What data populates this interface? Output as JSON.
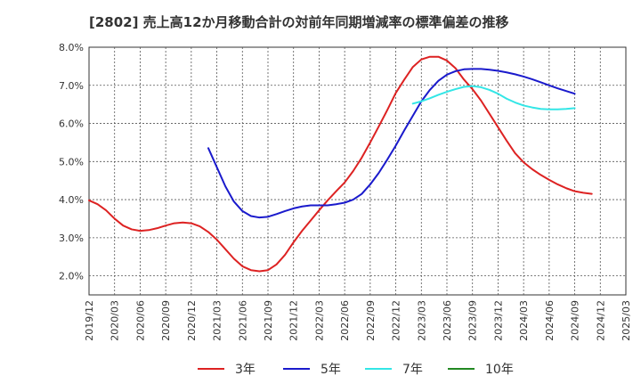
{
  "chart_data": {
    "type": "line",
    "title": "[2802]  売上高12か月移動合計の対前年同期増減率の標準偏差の推移",
    "xlabel": "",
    "ylabel": "",
    "ylim": [
      1.5,
      8.0
    ],
    "yticks": [
      "2.0%",
      "3.0%",
      "4.0%",
      "5.0%",
      "6.0%",
      "7.0%",
      "8.0%"
    ],
    "yticks_values": [
      2.0,
      3.0,
      4.0,
      5.0,
      6.0,
      7.0,
      8.0
    ],
    "xticks": [
      "2019/12",
      "2020/03",
      "2020/06",
      "2020/09",
      "2020/12",
      "2021/03",
      "2021/06",
      "2021/09",
      "2021/12",
      "2022/03",
      "2022/06",
      "2022/09",
      "2022/12",
      "2023/03",
      "2023/06",
      "2023/09",
      "2023/12",
      "2024/03",
      "2024/06",
      "2024/09",
      "2024/12",
      "2025/03"
    ],
    "grid": true,
    "legend_position": "bottom",
    "x_start": "2019/12",
    "series": [
      {
        "name": "3年",
        "color": "#dd2222",
        "start": "2019/12",
        "values": [
          3.98,
          3.88,
          3.72,
          3.5,
          3.32,
          3.22,
          3.18,
          3.2,
          3.25,
          3.32,
          3.38,
          3.4,
          3.38,
          3.3,
          3.15,
          2.95,
          2.7,
          2.45,
          2.25,
          2.15,
          2.12,
          2.15,
          2.3,
          2.55,
          2.88,
          3.18,
          3.45,
          3.72,
          3.98,
          4.22,
          4.45,
          4.75,
          5.1,
          5.5,
          5.92,
          6.35,
          6.8,
          7.15,
          7.48,
          7.68,
          7.75,
          7.75,
          7.65,
          7.45,
          7.15,
          6.9,
          6.6,
          6.25,
          5.9,
          5.55,
          5.22,
          4.98,
          4.8,
          4.65,
          4.52,
          4.4,
          4.3,
          4.22,
          4.18,
          4.15
        ]
      },
      {
        "name": "5年",
        "color": "#1a1acc",
        "start": "2021/02",
        "values": [
          5.35,
          4.85,
          4.35,
          3.95,
          3.7,
          3.57,
          3.53,
          3.55,
          3.62,
          3.7,
          3.77,
          3.82,
          3.85,
          3.85,
          3.85,
          3.88,
          3.92,
          4.0,
          4.15,
          4.4,
          4.7,
          5.05,
          5.42,
          5.82,
          6.2,
          6.58,
          6.88,
          7.12,
          7.28,
          7.37,
          7.42,
          7.43,
          7.43,
          7.41,
          7.38,
          7.34,
          7.29,
          7.23,
          7.16,
          7.08,
          7.0,
          6.92,
          6.85,
          6.78
        ]
      },
      {
        "name": "7年",
        "color": "#33e6e6",
        "start": "2023/02",
        "values": [
          6.52,
          6.58,
          6.66,
          6.75,
          6.83,
          6.9,
          6.96,
          6.98,
          6.95,
          6.88,
          6.78,
          6.65,
          6.55,
          6.47,
          6.42,
          6.38,
          6.37,
          6.37,
          6.38,
          6.4
        ]
      },
      {
        "name": "10年",
        "color": "#228822",
        "start": "2024/12",
        "values": []
      }
    ]
  }
}
